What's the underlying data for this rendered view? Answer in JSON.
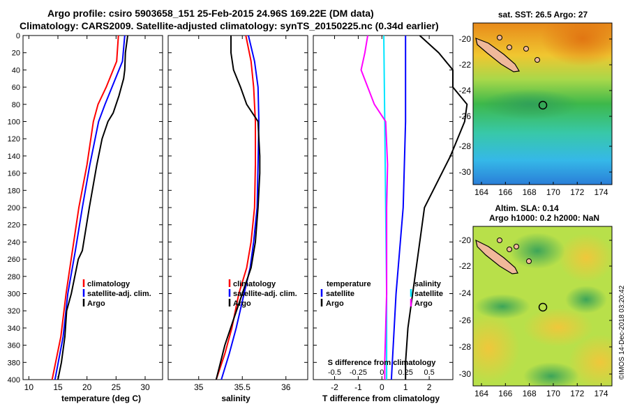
{
  "header": {
    "title_line1": "Argo profile: csiro 5903658_151 25-Feb-2015 24.96S 169.22E (DM data)",
    "title_line2": "Climatology: CARS2009. Satellite-adjusted climatology: synTS_20150225.nc (0.34d earlier)"
  },
  "colors": {
    "climatology": "#ff0000",
    "satellite": "#0000ff",
    "argo": "#000000",
    "salinity_diff": "#ff00ff",
    "temperature_diff_sat": "#00e5ff"
  },
  "chart_data": [
    {
      "id": "temperature",
      "type": "line",
      "xlabel": "temperature (deg C)",
      "xlim": [
        9,
        33
      ],
      "xticks": [
        10,
        15,
        20,
        25,
        30
      ],
      "ylim": [
        400,
        0
      ],
      "yticks": [
        0,
        20,
        40,
        60,
        80,
        100,
        120,
        140,
        160,
        180,
        200,
        220,
        240,
        260,
        280,
        300,
        320,
        340,
        360,
        380,
        400
      ],
      "legend": [
        "climatology",
        "satellite-adj. clim.",
        "Argo"
      ],
      "series": [
        {
          "name": "climatology",
          "depth": [
            0,
            30,
            60,
            80,
            100,
            150,
            200,
            250,
            300,
            350,
            400
          ],
          "values": [
            25.4,
            25.1,
            23.3,
            21.9,
            21.1,
            20.0,
            18.6,
            17.5,
            16.4,
            15.5,
            14.0
          ]
        },
        {
          "name": "satellite-adj. clim.",
          "depth": [
            0,
            30,
            60,
            80,
            100,
            150,
            200,
            250,
            300,
            350,
            400
          ],
          "values": [
            26.5,
            26.1,
            24.3,
            23.1,
            22.0,
            20.5,
            19.2,
            18.0,
            16.7,
            15.9,
            14.5
          ]
        },
        {
          "name": "Argo",
          "depth": [
            0,
            20,
            40,
            50,
            70,
            90,
            100,
            120,
            150,
            200,
            250,
            260,
            300,
            320,
            350,
            380,
            400
          ],
          "values": [
            27.0,
            26.6,
            26.5,
            26.3,
            25.5,
            24.5,
            23.6,
            22.6,
            21.7,
            20.4,
            19.2,
            18.5,
            17.3,
            16.5,
            16.2,
            15.6,
            15.0
          ]
        }
      ]
    },
    {
      "id": "salinity",
      "type": "line",
      "xlabel": "salinity",
      "xlim": [
        34.65,
        36.25
      ],
      "xticks": [
        35,
        35.5,
        36
      ],
      "xticklabels": [
        "35",
        "35.5",
        "36"
      ],
      "ylim": [
        400,
        0
      ],
      "legend": [
        "climatology",
        "satellite-adj. clim.",
        "Argo"
      ],
      "series": [
        {
          "name": "climatology",
          "depth": [
            0,
            30,
            60,
            100,
            150,
            200,
            240,
            270,
            300,
            340,
            370,
            400
          ],
          "values": [
            35.54,
            35.6,
            35.63,
            35.65,
            35.65,
            35.64,
            35.6,
            35.55,
            35.46,
            35.38,
            35.3,
            35.2
          ]
        },
        {
          "name": "satellite-adj. clim.",
          "depth": [
            0,
            30,
            60,
            100,
            150,
            200,
            240,
            270,
            300,
            340,
            370,
            400
          ],
          "values": [
            35.57,
            35.64,
            35.68,
            35.69,
            35.68,
            35.67,
            35.63,
            35.59,
            35.52,
            35.43,
            35.35,
            35.26
          ]
        },
        {
          "name": "Argo",
          "depth": [
            0,
            20,
            40,
            60,
            80,
            100,
            120,
            140,
            160,
            200,
            240,
            270,
            300,
            330,
            360,
            400
          ],
          "values": [
            35.37,
            35.37,
            35.4,
            35.48,
            35.55,
            35.68,
            35.69,
            35.7,
            35.7,
            35.68,
            35.65,
            35.6,
            35.5,
            35.4,
            35.3,
            35.2
          ]
        }
      ]
    },
    {
      "id": "differences",
      "type": "line",
      "xlabel": "T difference from climatology",
      "xlim": [
        -2.9,
        3.0
      ],
      "xticks": [
        -2,
        -1,
        0,
        1,
        2
      ],
      "xlabel_top": "S difference from climatology",
      "xticks_top": [
        "-0.5",
        "-0.25",
        "0",
        "0.25",
        "0.5"
      ],
      "ylim": [
        400,
        0
      ],
      "legend_left": {
        "title": "temperature",
        "items": [
          "satellite",
          "Argo"
        ]
      },
      "legend_right": {
        "title": "salinity",
        "items": [
          "satellite",
          "Argo"
        ]
      },
      "series": [
        {
          "name": "T satellite",
          "depth": [
            0,
            100,
            200,
            300,
            400
          ],
          "values": [
            1.0,
            1.0,
            0.9,
            0.6,
            0.4
          ]
        },
        {
          "name": "T Argo",
          "depth": [
            0,
            20,
            40,
            60,
            80,
            100,
            140,
            200,
            260,
            300,
            340,
            380,
            400
          ],
          "values": [
            1.6,
            2.4,
            3.0,
            3.0,
            3.6,
            3.5,
            2.9,
            1.8,
            1.5,
            1.3,
            1.1,
            1.0,
            1.0
          ]
        },
        {
          "name": "S satellite",
          "depth": [
            0,
            100,
            200,
            300,
            400
          ],
          "values": [
            0.02,
            0.03,
            0.04,
            0.05,
            0.05
          ]
        },
        {
          "name": "S Argo",
          "depth": [
            0,
            20,
            40,
            60,
            80,
            100,
            150,
            200,
            300,
            380,
            400
          ],
          "values": [
            -0.15,
            -0.18,
            -0.22,
            -0.15,
            -0.08,
            0.04,
            0.06,
            0.05,
            0.05,
            0.03,
            0.03
          ]
        }
      ]
    }
  ],
  "maps": {
    "sst": {
      "title": "sat. SST: 26.5 Argo: 27",
      "lon_ticks": [
        "164",
        "166",
        "168",
        "170",
        "172",
        "174"
      ],
      "lat_ticks": [
        "-20",
        "-22",
        "-24",
        "-26",
        "-28",
        "-30"
      ]
    },
    "sla": {
      "title_line1": "Altim. SLA: 0.14",
      "title_line2": "Argo h1000: 0.2 h2000: NaN",
      "lon_ticks": [
        "164",
        "166",
        "168",
        "170",
        "172",
        "174"
      ],
      "lat_ticks": [
        "-20",
        "-22",
        "-24",
        "-26",
        "-28",
        "-30"
      ]
    }
  },
  "footer": {
    "stamp": "©IMOS 14-Dec-2018 03:20:42"
  }
}
